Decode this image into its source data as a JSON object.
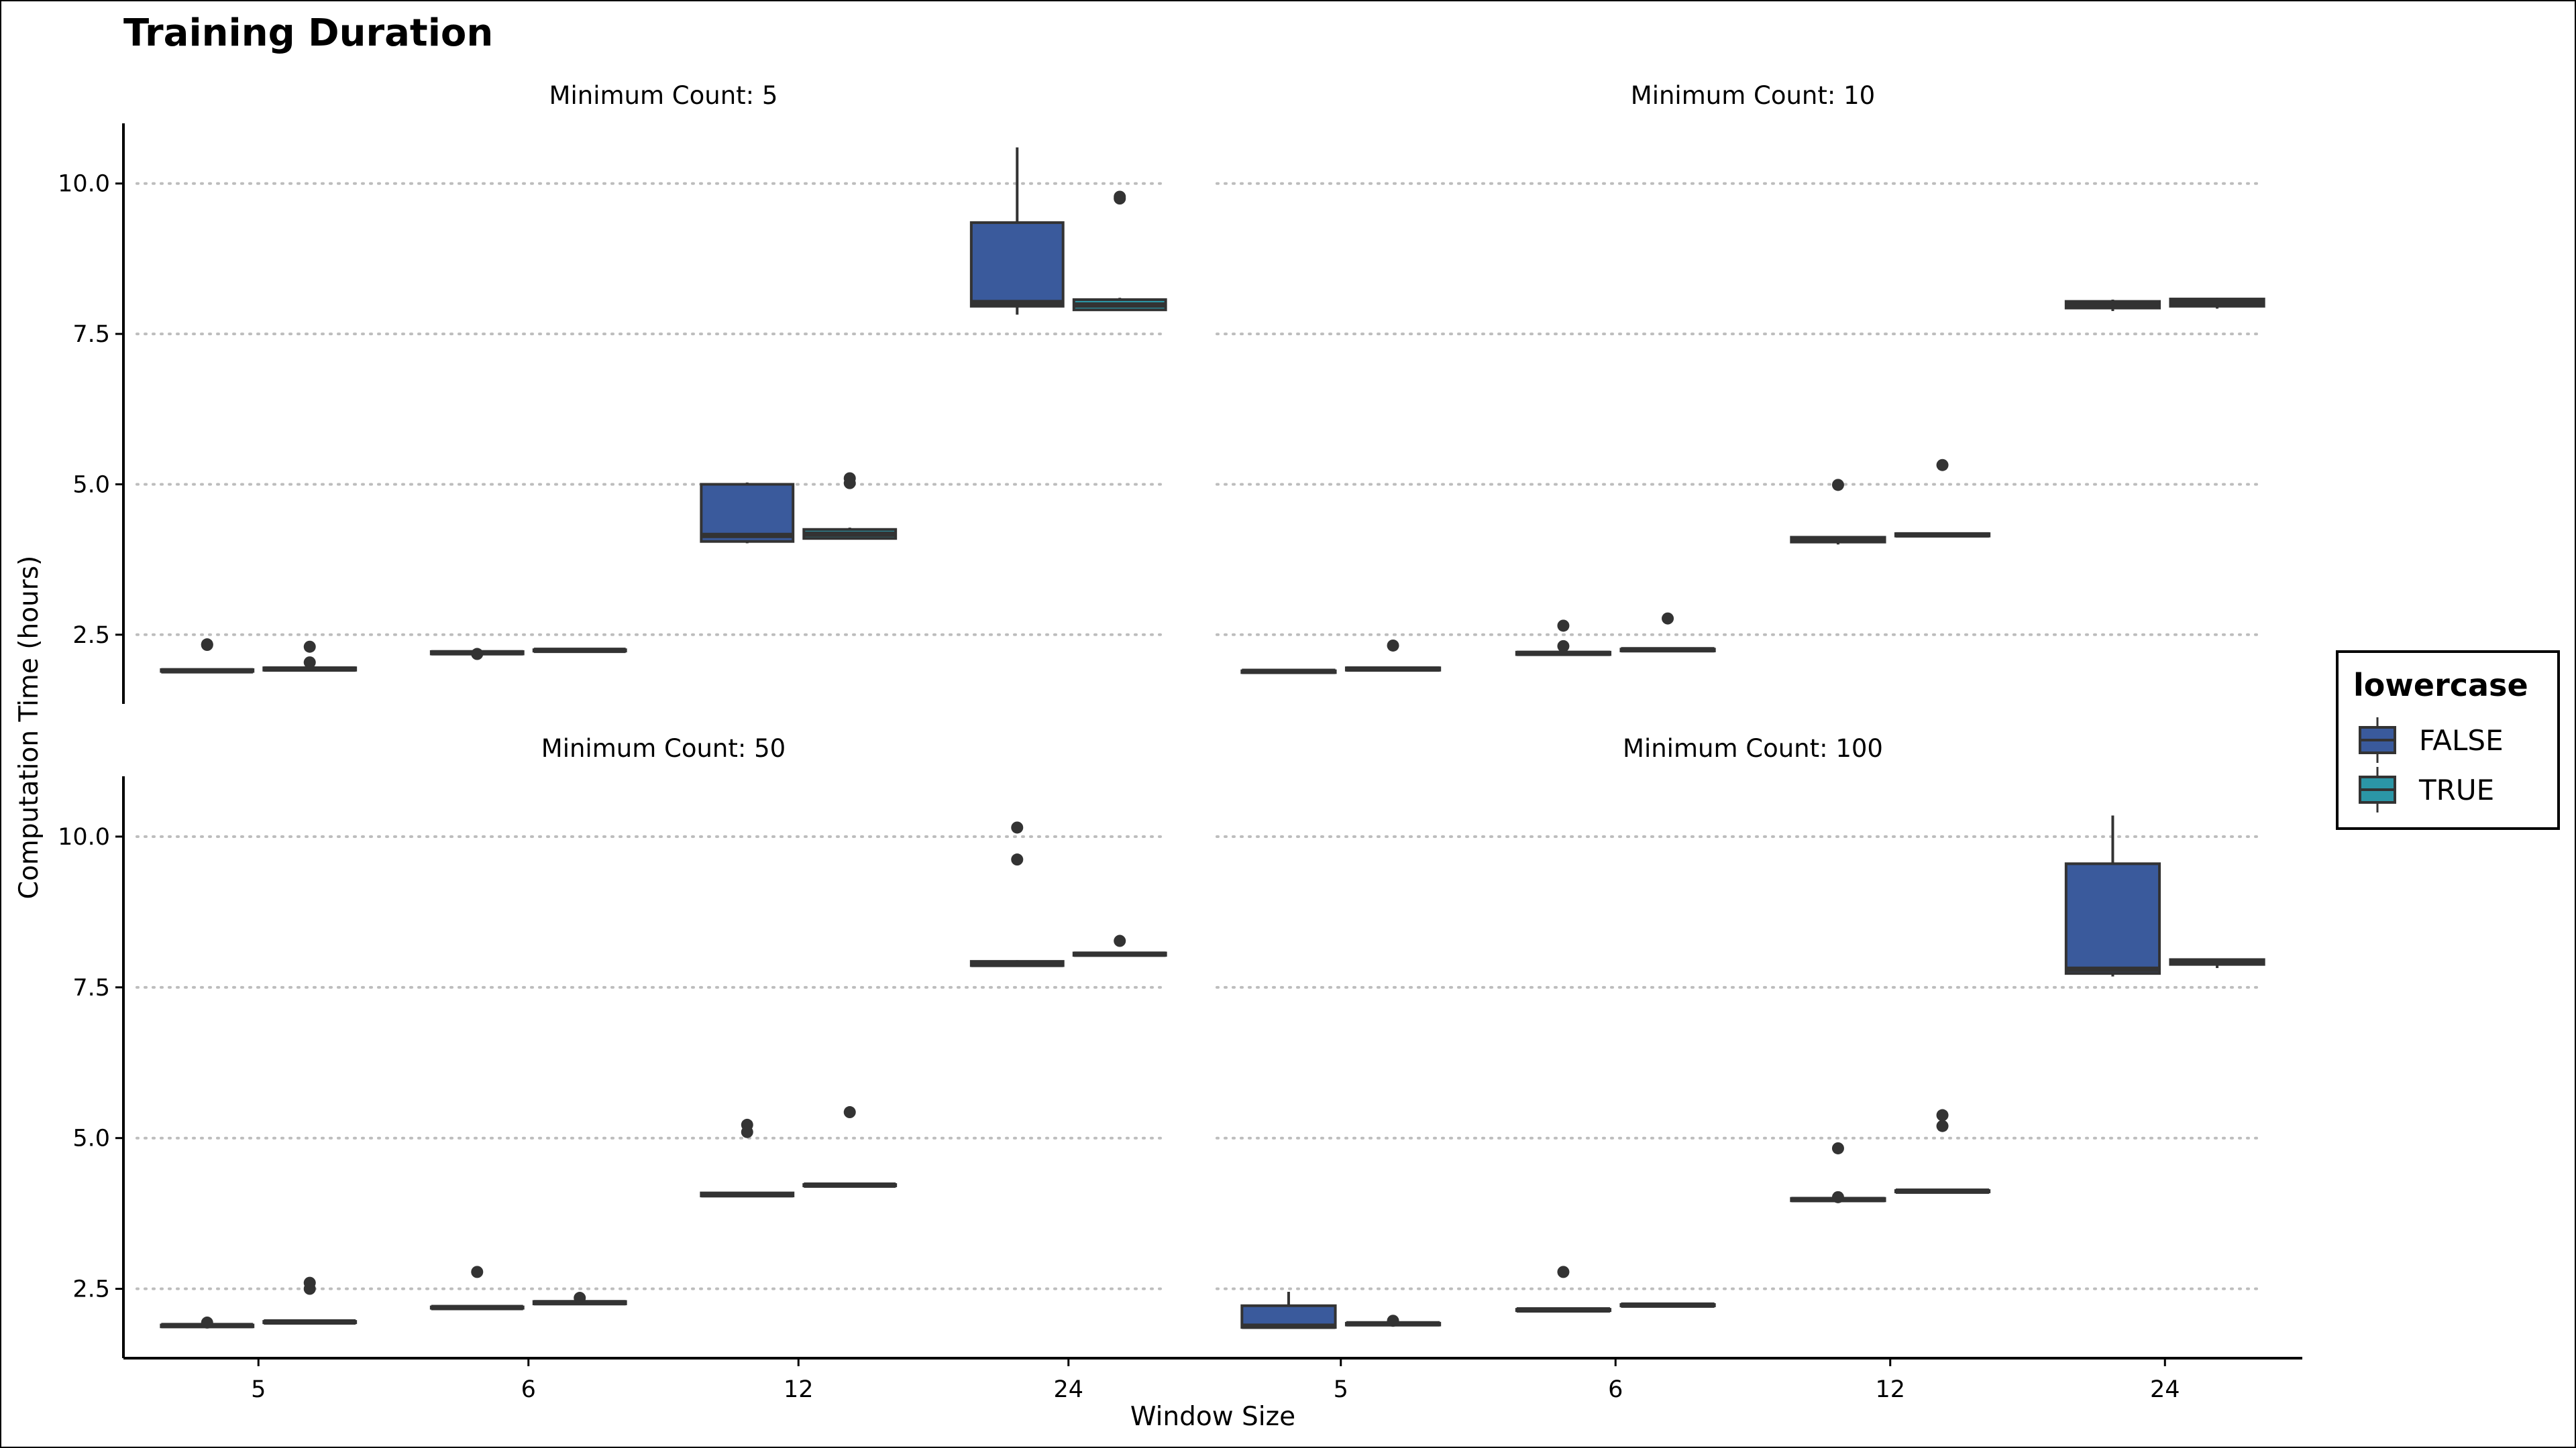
{
  "chart_data": {
    "type": "box",
    "title": "Training Duration",
    "xlabel": "Window Size",
    "ylabel": "Computation Time (hours)",
    "categories": [
      "5",
      "6",
      "12",
      "24"
    ],
    "yticks": [
      2.5,
      5.0,
      7.5,
      10.0
    ],
    "yticklabels": [
      "2.5",
      "5.0",
      "7.5",
      "10.0"
    ],
    "ylim": [
      1.35,
      11.0
    ],
    "grid": "horizontal dotted",
    "legend": {
      "title": "lowercase",
      "placement": "right",
      "entries": [
        {
          "label": "FALSE",
          "color": "#3a5a9c"
        },
        {
          "label": "TRUE",
          "color": "#2b96a6"
        }
      ]
    },
    "colors": {
      "FALSE": "#3a5a9c",
      "TRUE": "#2b96a6",
      "outline": "#333333",
      "grid": "#bdbdbd"
    },
    "panels": [
      {
        "label": "Minimum Count: 5",
        "boxes": [
          {
            "window": "5",
            "lowercase": "FALSE",
            "min": 1.88,
            "q1": 1.89,
            "median": 1.9,
            "q3": 1.92,
            "max": 1.93,
            "outliers": [
              2.33,
              2.34
            ]
          },
          {
            "window": "5",
            "lowercase": "TRUE",
            "min": 1.9,
            "q1": 1.91,
            "median": 1.93,
            "q3": 1.95,
            "max": 1.96,
            "outliers": [
              2.3,
              2.04
            ]
          },
          {
            "window": "6",
            "lowercase": "FALSE",
            "min": 2.17,
            "q1": 2.18,
            "median": 2.2,
            "q3": 2.22,
            "max": 2.23,
            "outliers": [
              2.18
            ]
          },
          {
            "window": "6",
            "lowercase": "TRUE",
            "min": 2.22,
            "q1": 2.23,
            "median": 2.24,
            "q3": 2.25,
            "max": 2.26,
            "outliers": []
          },
          {
            "window": "12",
            "lowercase": "FALSE",
            "min": 4.02,
            "q1": 4.05,
            "median": 4.15,
            "q3": 5.0,
            "max": 5.03,
            "outliers": []
          },
          {
            "window": "12",
            "lowercase": "TRUE",
            "min": 4.08,
            "q1": 4.1,
            "median": 4.17,
            "q3": 4.25,
            "max": 4.28,
            "outliers": [
              5.1,
              5.02
            ]
          },
          {
            "window": "24",
            "lowercase": "FALSE",
            "min": 7.82,
            "q1": 7.96,
            "median": 8.02,
            "q3": 9.35,
            "max": 10.6,
            "outliers": []
          },
          {
            "window": "24",
            "lowercase": "TRUE",
            "min": 7.88,
            "q1": 7.9,
            "median": 7.98,
            "q3": 8.07,
            "max": 8.1,
            "outliers": [
              9.75,
              9.78
            ]
          }
        ]
      },
      {
        "label": "Minimum Count: 10",
        "boxes": [
          {
            "window": "5",
            "lowercase": "FALSE",
            "min": 1.86,
            "q1": 1.87,
            "median": 1.89,
            "q3": 1.9,
            "max": 1.91,
            "outliers": []
          },
          {
            "window": "5",
            "lowercase": "TRUE",
            "min": 1.9,
            "q1": 1.91,
            "median": 1.93,
            "q3": 1.95,
            "max": 1.96,
            "outliers": [
              2.32
            ]
          },
          {
            "window": "6",
            "lowercase": "FALSE",
            "min": 2.16,
            "q1": 2.17,
            "median": 2.19,
            "q3": 2.21,
            "max": 2.22,
            "outliers": [
              2.65,
              2.31
            ]
          },
          {
            "window": "6",
            "lowercase": "TRUE",
            "min": 2.22,
            "q1": 2.23,
            "median": 2.25,
            "q3": 2.26,
            "max": 2.27,
            "outliers": [
              2.77
            ]
          },
          {
            "window": "12",
            "lowercase": "FALSE",
            "min": 4.0,
            "q1": 4.04,
            "median": 4.08,
            "q3": 4.12,
            "max": 4.14,
            "outliers": [
              4.99
            ]
          },
          {
            "window": "12",
            "lowercase": "TRUE",
            "min": 4.12,
            "q1": 4.14,
            "median": 4.16,
            "q3": 4.18,
            "max": 4.19,
            "outliers": [
              5.32
            ]
          },
          {
            "window": "24",
            "lowercase": "FALSE",
            "min": 7.88,
            "q1": 7.93,
            "median": 7.98,
            "q3": 8.04,
            "max": 8.07,
            "outliers": []
          },
          {
            "window": "24",
            "lowercase": "TRUE",
            "min": 7.92,
            "q1": 7.96,
            "median": 8.02,
            "q3": 8.08,
            "max": 8.1,
            "outliers": []
          }
        ]
      },
      {
        "label": "Minimum Count: 50",
        "boxes": [
          {
            "window": "5",
            "lowercase": "FALSE",
            "min": 1.86,
            "q1": 1.87,
            "median": 1.89,
            "q3": 1.9,
            "max": 1.91,
            "outliers": [
              1.94
            ]
          },
          {
            "window": "5",
            "lowercase": "TRUE",
            "min": 1.93,
            "q1": 1.94,
            "median": 1.95,
            "q3": 1.96,
            "max": 1.97,
            "outliers": [
              2.6,
              2.5
            ]
          },
          {
            "window": "6",
            "lowercase": "FALSE",
            "min": 2.17,
            "q1": 2.18,
            "median": 2.19,
            "q3": 2.2,
            "max": 2.21,
            "outliers": [
              2.78
            ]
          },
          {
            "window": "6",
            "lowercase": "TRUE",
            "min": 2.24,
            "q1": 2.25,
            "median": 2.27,
            "q3": 2.29,
            "max": 2.3,
            "outliers": [
              2.35
            ]
          },
          {
            "window": "12",
            "lowercase": "FALSE",
            "min": 4.03,
            "q1": 4.04,
            "median": 4.06,
            "q3": 4.09,
            "max": 4.1,
            "outliers": [
              5.22,
              5.1
            ]
          },
          {
            "window": "12",
            "lowercase": "TRUE",
            "min": 4.2,
            "q1": 4.21,
            "median": 4.22,
            "q3": 4.23,
            "max": 4.24,
            "outliers": [
              5.43
            ]
          },
          {
            "window": "24",
            "lowercase": "FALSE",
            "min": 7.85,
            "q1": 7.86,
            "median": 7.88,
            "q3": 7.93,
            "max": 7.95,
            "outliers": [
              10.15,
              9.62
            ]
          },
          {
            "window": "24",
            "lowercase": "TRUE",
            "min": 8.02,
            "q1": 8.03,
            "median": 8.05,
            "q3": 8.07,
            "max": 8.08,
            "outliers": [
              8.27
            ]
          }
        ]
      },
      {
        "label": "Minimum Count: 100",
        "boxes": [
          {
            "window": "5",
            "lowercase": "FALSE",
            "min": 1.84,
            "q1": 1.86,
            "median": 1.88,
            "q3": 2.22,
            "max": 2.45,
            "outliers": []
          },
          {
            "window": "5",
            "lowercase": "TRUE",
            "min": 1.89,
            "q1": 1.9,
            "median": 1.92,
            "q3": 1.93,
            "max": 1.94,
            "outliers": [
              1.97
            ]
          },
          {
            "window": "6",
            "lowercase": "FALSE",
            "min": 2.13,
            "q1": 2.14,
            "median": 2.15,
            "q3": 2.16,
            "max": 2.17,
            "outliers": [
              2.78
            ]
          },
          {
            "window": "6",
            "lowercase": "TRUE",
            "min": 2.21,
            "q1": 2.22,
            "median": 2.23,
            "q3": 2.24,
            "max": 2.25,
            "outliers": []
          },
          {
            "window": "12",
            "lowercase": "FALSE",
            "min": 3.95,
            "q1": 3.96,
            "median": 3.98,
            "q3": 4.0,
            "max": 4.01,
            "outliers": [
              4.83,
              4.02
            ]
          },
          {
            "window": "12",
            "lowercase": "TRUE",
            "min": 4.1,
            "q1": 4.11,
            "median": 4.12,
            "q3": 4.13,
            "max": 4.14,
            "outliers": [
              5.38,
              5.2
            ]
          },
          {
            "window": "24",
            "lowercase": "FALSE",
            "min": 7.68,
            "q1": 7.73,
            "median": 7.8,
            "q3": 9.55,
            "max": 10.35,
            "outliers": []
          },
          {
            "window": "24",
            "lowercase": "TRUE",
            "min": 7.82,
            "q1": 7.88,
            "median": 7.92,
            "q3": 7.96,
            "max": 7.98,
            "outliers": []
          }
        ]
      }
    ]
  }
}
